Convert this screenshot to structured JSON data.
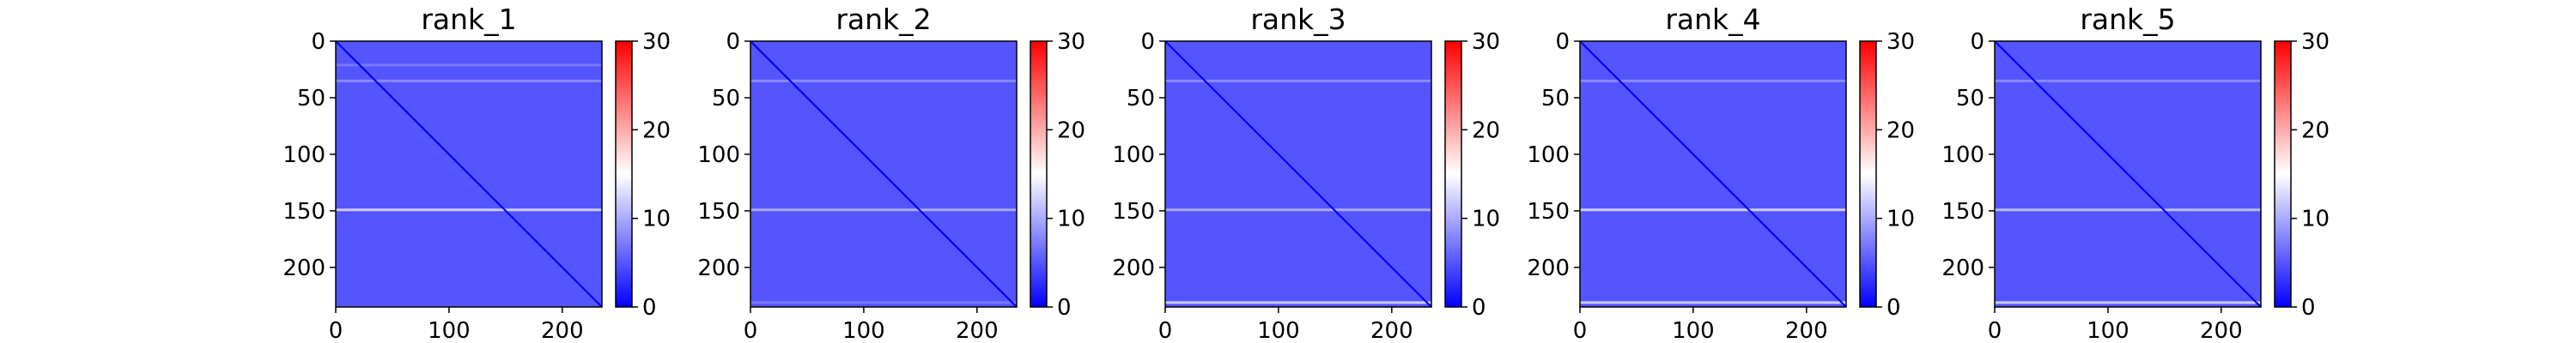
{
  "chart_data": [
    {
      "type": "heatmap",
      "title": "rank_1",
      "xlabel": "",
      "ylabel": "",
      "xlim": [
        0,
        235
      ],
      "ylim": [
        235,
        0
      ],
      "x_ticks": [
        0,
        100,
        200
      ],
      "y_ticks": [
        0,
        50,
        100,
        150,
        200
      ],
      "colorbar": {
        "colormap": "bwr",
        "range": [
          0,
          30
        ],
        "ticks": [
          0,
          10,
          20,
          30
        ]
      },
      "matrix_size": 235,
      "diagonal_value": 0,
      "background_value": 5,
      "bright_bands": [
        {
          "axis": "row",
          "index": 148,
          "value": 12
        },
        {
          "axis": "row",
          "index": 34,
          "value": 8
        },
        {
          "axis": "row",
          "index": 20,
          "value": 7
        }
      ]
    },
    {
      "type": "heatmap",
      "title": "rank_2",
      "xlabel": "",
      "ylabel": "",
      "xlim": [
        0,
        235
      ],
      "ylim": [
        235,
        0
      ],
      "x_ticks": [
        0,
        100,
        200
      ],
      "y_ticks": [
        0,
        50,
        100,
        150,
        200
      ],
      "colorbar": {
        "colormap": "bwr",
        "range": [
          0,
          30
        ],
        "ticks": [
          0,
          10,
          20,
          30
        ]
      },
      "matrix_size": 235,
      "diagonal_value": 0,
      "background_value": 5,
      "bright_bands": [
        {
          "axis": "row",
          "index": 148,
          "value": 10
        },
        {
          "axis": "row",
          "index": 34,
          "value": 8
        },
        {
          "axis": "row",
          "index": 230,
          "value": 7
        }
      ]
    },
    {
      "type": "heatmap",
      "title": "rank_3",
      "xlabel": "",
      "ylabel": "",
      "xlim": [
        0,
        235
      ],
      "ylim": [
        235,
        0
      ],
      "x_ticks": [
        0,
        100,
        200
      ],
      "y_ticks": [
        0,
        50,
        100,
        150,
        200
      ],
      "colorbar": {
        "colormap": "bwr",
        "range": [
          0,
          30
        ],
        "ticks": [
          0,
          10,
          20,
          30
        ]
      },
      "matrix_size": 235,
      "diagonal_value": 0,
      "background_value": 5,
      "bright_bands": [
        {
          "axis": "row",
          "index": 148,
          "value": 10
        },
        {
          "axis": "row",
          "index": 34,
          "value": 8
        },
        {
          "axis": "row",
          "index": 230,
          "value": 12
        }
      ]
    },
    {
      "type": "heatmap",
      "title": "rank_4",
      "xlabel": "",
      "ylabel": "",
      "xlim": [
        0,
        235
      ],
      "ylim": [
        235,
        0
      ],
      "x_ticks": [
        0,
        100,
        200
      ],
      "y_ticks": [
        0,
        50,
        100,
        150,
        200
      ],
      "colorbar": {
        "colormap": "bwr",
        "range": [
          0,
          30
        ],
        "ticks": [
          0,
          10,
          20,
          30
        ]
      },
      "matrix_size": 235,
      "diagonal_value": 0,
      "background_value": 5,
      "bright_bands": [
        {
          "axis": "row",
          "index": 148,
          "value": 12
        },
        {
          "axis": "row",
          "index": 34,
          "value": 8
        },
        {
          "axis": "row",
          "index": 230,
          "value": 12
        }
      ]
    },
    {
      "type": "heatmap",
      "title": "rank_5",
      "xlabel": "",
      "ylabel": "",
      "xlim": [
        0,
        235
      ],
      "ylim": [
        235,
        0
      ],
      "x_ticks": [
        0,
        100,
        200
      ],
      "y_ticks": [
        0,
        50,
        100,
        150,
        200
      ],
      "colorbar": {
        "colormap": "bwr",
        "range": [
          0,
          30
        ],
        "ticks": [
          0,
          10,
          20,
          30
        ]
      },
      "matrix_size": 235,
      "diagonal_value": 0,
      "background_value": 5,
      "bright_bands": [
        {
          "axis": "row",
          "index": 148,
          "value": 11
        },
        {
          "axis": "row",
          "index": 34,
          "value": 8
        },
        {
          "axis": "row",
          "index": 230,
          "value": 12
        }
      ]
    }
  ]
}
